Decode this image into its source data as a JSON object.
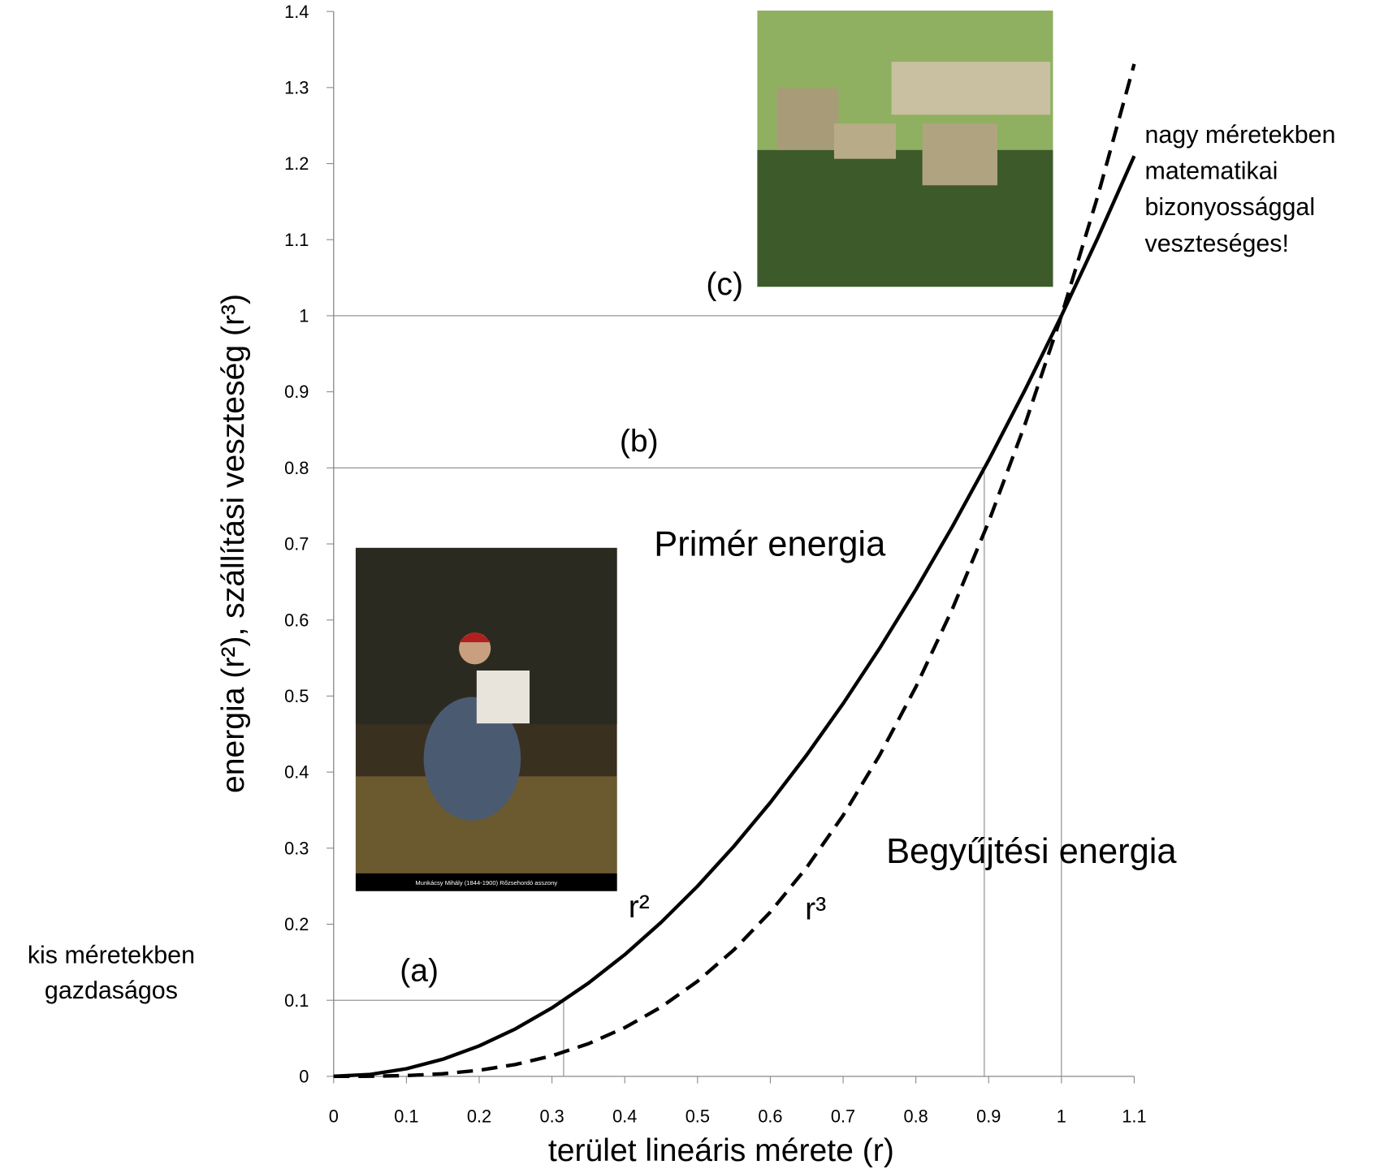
{
  "chart_data": {
    "type": "line",
    "x_label": "terület lineáris mérete (r)",
    "y_label": "energia (r²), szállítási veszteség (r³)",
    "x": [
      0,
      0.05,
      0.1,
      0.15,
      0.2,
      0.25,
      0.3,
      0.35,
      0.4,
      0.45,
      0.5,
      0.55,
      0.6,
      0.65,
      0.7,
      0.75,
      0.8,
      0.85,
      0.9,
      0.95,
      1,
      1.05,
      1.1
    ],
    "series": [
      {
        "name": "r²",
        "color": "#000000",
        "style": "solid",
        "values": [
          0,
          0.0025,
          0.01,
          0.0225,
          0.04,
          0.0625,
          0.09,
          0.1225,
          0.16,
          0.2025,
          0.25,
          0.3025,
          0.36,
          0.4225,
          0.49,
          0.5625,
          0.64,
          0.7225,
          0.81,
          0.9025,
          1,
          1.1025,
          1.21
        ]
      },
      {
        "name": "r³",
        "color": "#000000",
        "style": "dashed",
        "values": [
          0,
          0.000125,
          0.001,
          0.003375,
          0.008,
          0.015625,
          0.027,
          0.042875,
          0.064,
          0.091125,
          0.125,
          0.166375,
          0.216,
          0.274625,
          0.343,
          0.421875,
          0.512,
          0.614125,
          0.729,
          0.857375,
          1,
          1.157625,
          1.331
        ]
      }
    ],
    "xlim": [
      0,
      1.1
    ],
    "ylim": [
      0,
      1.4
    ],
    "xticks": [
      0,
      0.1,
      0.2,
      0.3,
      0.4,
      0.5,
      0.6,
      0.7,
      0.8,
      0.9,
      1,
      1.1
    ],
    "yticks": [
      0,
      0.1,
      0.2,
      0.3,
      0.4,
      0.5,
      0.6,
      0.7,
      0.8,
      0.9,
      1,
      1.1,
      1.2,
      1.3,
      1.4
    ],
    "grid": false,
    "reference_lines": [
      {
        "x": 0.316,
        "y": 0.1
      },
      {
        "x": 0.894,
        "y": 0.8
      },
      {
        "x": 1,
        "y": 1
      }
    ],
    "annotations": [
      {
        "text": "Primér energia"
      },
      {
        "text": "Begyűjtési energia"
      },
      {
        "text": "(a)"
      },
      {
        "text": "(b)"
      },
      {
        "text": "(c)"
      },
      {
        "text": [
          "kis méretekben",
          "gazdaságos"
        ]
      },
      {
        "text": [
          "nagy méretekben",
          "matematikai",
          "bizonyossággal",
          "veszteséges!"
        ]
      }
    ],
    "image_caption": "Munkácsy Mihály (1844-1900)   Rőzsehordó asszony"
  }
}
